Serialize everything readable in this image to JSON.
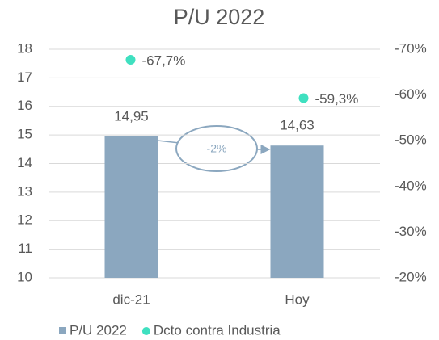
{
  "chart_data": {
    "type": "bar",
    "title": "P/U 2022",
    "categories": [
      "dic-21",
      "Hoy"
    ],
    "series": [
      {
        "name": "P/U 2022",
        "type": "bar",
        "color": "#8ba7bf",
        "values": [
          14.95,
          14.63
        ],
        "value_labels": [
          "14,95",
          "14,63"
        ]
      },
      {
        "name": "Dcto contra Industria",
        "type": "scatter",
        "axis": "y2",
        "color": "#3fe0c0",
        "values": [
          -67.7,
          -59.3
        ],
        "value_labels": [
          "-67,7%",
          "-59,3%"
        ]
      }
    ],
    "ylim": [
      10,
      18
    ],
    "yticks": [
      10,
      11,
      12,
      13,
      14,
      15,
      16,
      17,
      18
    ],
    "y2lim": [
      -20,
      -70
    ],
    "y2ticks": [
      {
        "value": -20,
        "label": "-20%"
      },
      {
        "value": -30,
        "label": "-30%"
      },
      {
        "value": -40,
        "label": "-40%"
      },
      {
        "value": -50,
        "label": "-50%"
      },
      {
        "value": -60,
        "label": "-60%"
      },
      {
        "value": -70,
        "label": "-70%"
      }
    ],
    "grid": true,
    "legend": "bottom",
    "annotation": "-2%"
  }
}
